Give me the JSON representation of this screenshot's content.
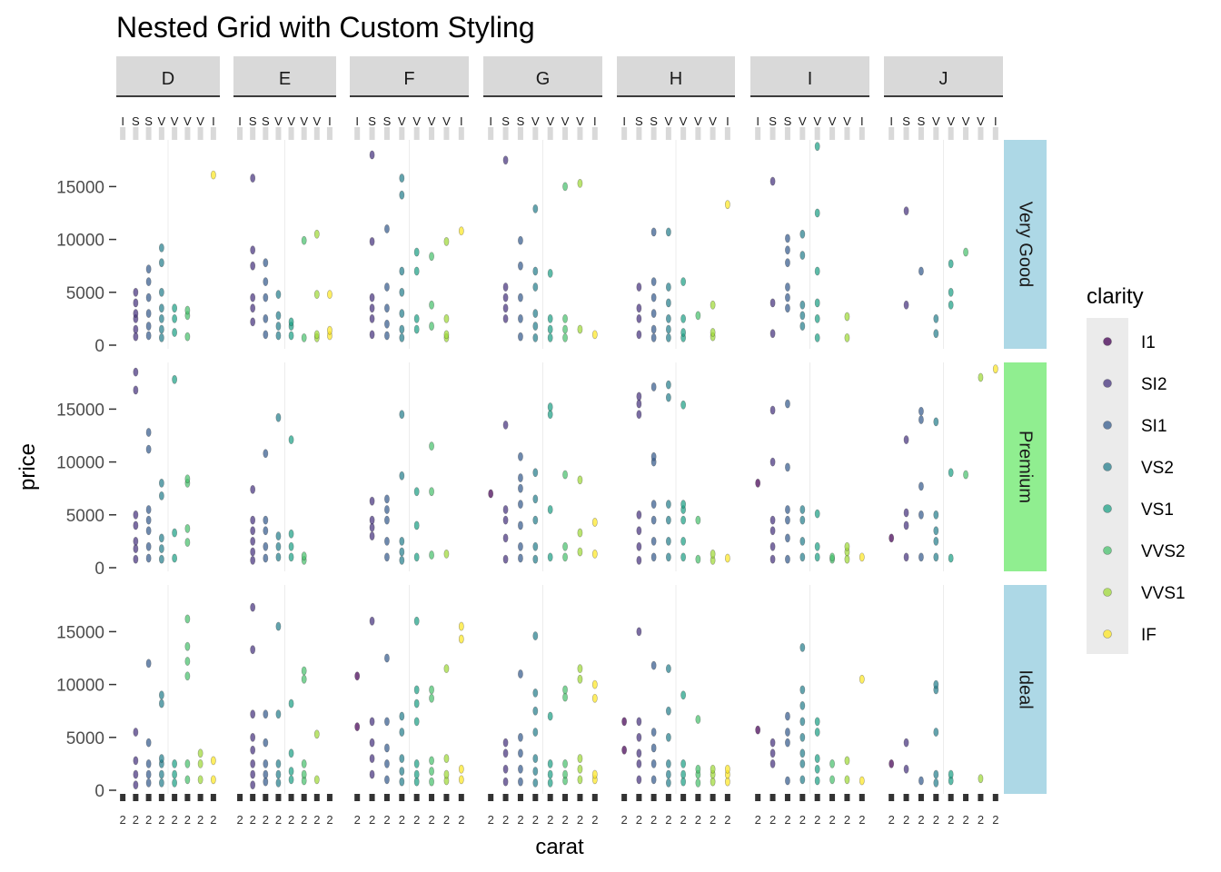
{
  "chart_data": {
    "type": "scatter",
    "title": "Nested Grid with Custom Styling",
    "xlabel": "carat",
    "ylabel": "price",
    "y_ticks": [
      0,
      5000,
      10000,
      15000
    ],
    "y_tick_labels": [
      "0",
      "5000",
      "10000",
      "15000"
    ],
    "ylim": [
      0,
      18900
    ],
    "color_facets": [
      "D",
      "E",
      "F",
      "G",
      "H",
      "I",
      "J"
    ],
    "cut_facets": [
      "Very Good",
      "Premium",
      "Ideal"
    ],
    "cut_strip_colors": [
      "#add8e6",
      "#90ee90",
      "#add8e6"
    ],
    "clarity_levels": [
      "I1",
      "SI2",
      "SI1",
      "VS2",
      "VS1",
      "VVS2",
      "VVS1",
      "IF"
    ],
    "clarity_colors": [
      "#440154",
      "#46337e",
      "#365c8d",
      "#277f8e",
      "#1fa187",
      "#4ac16d",
      "#a0da39",
      "#fde725"
    ],
    "legend": {
      "title": "clarity",
      "position": "right"
    },
    "grid": true,
    "panels": [
      {
        "cut": "Very Good",
        "color": "D",
        "points": {
          "I1": [],
          "SI2": [
            800,
            1500,
            2500,
            3000,
            4000,
            5000
          ],
          "SI1": [
            900,
            1800,
            3000,
            4500,
            6000,
            7200
          ],
          "VS2": [
            700,
            1500,
            2500,
            3500,
            5000,
            7800,
            9200
          ],
          "VS1": [
            1200,
            2500,
            3500
          ],
          "VVS2": [
            800,
            2800,
            3300
          ],
          "VVS1": [],
          "IF": [
            16100
          ]
        }
      },
      {
        "cut": "Very Good",
        "color": "E",
        "points": {
          "I1": [],
          "SI2": [
            2200,
            3500,
            4500,
            7500,
            9000,
            15800
          ],
          "SI1": [
            1000,
            2500,
            4500,
            6000,
            7800
          ],
          "VS2": [
            900,
            1800,
            2800,
            4800
          ],
          "VS1": [
            900,
            1800,
            2200
          ],
          "VVS2": [
            700,
            9900
          ],
          "VVS1": [
            700,
            1000,
            4800,
            10500
          ],
          "IF": [
            900,
            1400,
            4800
          ]
        }
      },
      {
        "cut": "Very Good",
        "color": "F",
        "points": {
          "I1": [],
          "SI2": [
            1000,
            2500,
            3500,
            4500,
            9800,
            18000
          ],
          "SI1": [
            900,
            2000,
            3500,
            5500,
            11000
          ],
          "VS2": [
            700,
            1500,
            3000,
            5000,
            7000,
            14200,
            15800
          ],
          "VS1": [
            1500,
            2500,
            7000,
            8800
          ],
          "VVS2": [
            1800,
            3800,
            8400
          ],
          "VVS1": [
            700,
            1000,
            2500,
            9800
          ],
          "IF": [
            10800
          ]
        }
      },
      {
        "cut": "Very Good",
        "color": "G",
        "points": {
          "I1": [],
          "SI2": [
            2500,
            3500,
            4500,
            5500,
            17500
          ],
          "SI1": [
            800,
            2500,
            4500,
            7500,
            9900
          ],
          "VS2": [
            700,
            1800,
            3000,
            5500,
            7000,
            12900
          ],
          "VS1": [
            700,
            1500,
            2500,
            6800
          ],
          "VVS2": [
            700,
            1500,
            2500,
            15000
          ],
          "VVS1": [
            1500,
            15300
          ],
          "IF": [
            1000
          ]
        }
      },
      {
        "cut": "Very Good",
        "color": "H",
        "points": {
          "I1": [],
          "SI2": [
            1000,
            2500,
            3500,
            5500
          ],
          "SI1": [
            700,
            1500,
            3000,
            4500,
            6000,
            10700
          ],
          "VS2": [
            700,
            1500,
            2500,
            4000,
            5500,
            10700
          ],
          "VS1": [
            700,
            1200,
            2500,
            6000
          ],
          "VVS2": [
            2800
          ],
          "VVS1": [
            800,
            1200,
            3800
          ],
          "IF": [
            13300
          ]
        }
      },
      {
        "cut": "Very Good",
        "color": "I",
        "points": {
          "I1": [],
          "SI2": [
            1100,
            4000,
            15500
          ],
          "SI1": [
            3500,
            4500,
            5500,
            7800,
            9000,
            10100
          ],
          "VS2": [
            1800,
            2800,
            3800,
            8500,
            10500
          ],
          "VS1": [
            700,
            2500,
            4000,
            7000,
            12500,
            18800
          ],
          "VVS2": [],
          "VVS1": [
            700,
            2700
          ],
          "IF": []
        }
      },
      {
        "cut": "Very Good",
        "color": "J",
        "points": {
          "I1": [],
          "SI2": [
            3800,
            12700
          ],
          "SI1": [
            7000
          ],
          "VS2": [
            1100,
            2500
          ],
          "VS1": [
            3800,
            5000,
            7700
          ],
          "VVS2": [
            8800
          ],
          "VVS1": [],
          "IF": []
        }
      },
      {
        "cut": "Premium",
        "color": "D",
        "points": {
          "I1": [],
          "SI2": [
            800,
            1800,
            2500,
            4000,
            5000,
            16800,
            18500
          ],
          "SI1": [
            900,
            2000,
            3500,
            4500,
            5500,
            11200,
            12800
          ],
          "VS2": [
            800,
            1800,
            2800,
            6800,
            8000
          ],
          "VS1": [
            900,
            3300,
            17800
          ],
          "VVS2": [
            2400,
            3700,
            8000,
            8400
          ],
          "VVS1": [],
          "IF": []
        }
      },
      {
        "cut": "Premium",
        "color": "E",
        "points": {
          "I1": [],
          "SI2": [
            700,
            1500,
            2500,
            3500,
            4500,
            7400
          ],
          "SI1": [
            900,
            2000,
            3500,
            4500,
            10800
          ],
          "VS2": [
            1000,
            2000,
            3000,
            14200
          ],
          "VS1": [
            1000,
            2000,
            3200,
            12100
          ],
          "VVS2": [
            700,
            1100
          ],
          "VVS1": [],
          "IF": []
        }
      },
      {
        "cut": "Premium",
        "color": "F",
        "points": {
          "I1": [],
          "SI2": [
            3000,
            3800,
            4500,
            6300
          ],
          "SI1": [
            1000,
            2500,
            4500,
            5500,
            6500
          ],
          "VS2": [
            700,
            1500,
            2500,
            8700,
            14500
          ],
          "VS1": [
            1000,
            4000,
            7200
          ],
          "VVS2": [
            1200,
            7200,
            11500
          ],
          "VVS1": [
            1300
          ],
          "IF": []
        }
      },
      {
        "cut": "Premium",
        "color": "G",
        "points": {
          "I1": [
            7000
          ],
          "SI2": [
            800,
            2800,
            4500,
            5500,
            13500
          ],
          "SI1": [
            900,
            2000,
            4000,
            6000,
            7500,
            8500,
            10500
          ],
          "VS2": [
            800,
            2000,
            4500,
            6500,
            9000
          ],
          "VS1": [
            1000,
            5500,
            14500,
            15200
          ],
          "VVS2": [
            1000,
            2000,
            8800
          ],
          "VVS1": [
            1500,
            3300,
            8300
          ],
          "IF": [
            1300,
            4300
          ]
        }
      },
      {
        "cut": "Premium",
        "color": "H",
        "points": {
          "I1": [],
          "SI2": [
            700,
            2000,
            3500,
            5000,
            14500,
            15500,
            16200
          ],
          "SI1": [
            1000,
            2500,
            4500,
            6000,
            10000,
            10500,
            17100
          ],
          "VS2": [
            1000,
            2500,
            4500,
            6000,
            16100,
            17300
          ],
          "VS1": [
            1000,
            2500,
            4500,
            5500,
            6000,
            15400
          ],
          "VVS2": [
            800,
            4500
          ],
          "VVS1": [
            700,
            1300
          ],
          "IF": [
            900
          ]
        }
      },
      {
        "cut": "Premium",
        "color": "I",
        "points": {
          "I1": [
            8000
          ],
          "SI2": [
            800,
            2000,
            3500,
            4500,
            10000,
            14900
          ],
          "SI1": [
            800,
            2800,
            4500,
            5500,
            9500,
            15500
          ],
          "VS2": [
            1000,
            2500,
            4500,
            5500
          ],
          "VS1": [
            1000,
            2000,
            5100
          ],
          "VVS2": [
            800,
            1000
          ],
          "VVS1": [
            800,
            1500,
            2000
          ],
          "IF": [
            1000
          ]
        }
      },
      {
        "cut": "Premium",
        "color": "J",
        "points": {
          "I1": [
            2800
          ],
          "SI2": [
            1000,
            4000,
            5200,
            12100
          ],
          "SI1": [
            1000,
            5000,
            7700,
            14000,
            14800
          ],
          "VS2": [
            1000,
            2500,
            3500,
            5000,
            13800
          ],
          "VS1": [
            900,
            9000
          ],
          "VVS2": [
            8800
          ],
          "VVS1": [
            18000
          ],
          "IF": [
            18800
          ]
        }
      },
      {
        "cut": "Ideal",
        "color": "D",
        "points": {
          "I1": [],
          "SI2": [
            500,
            1500,
            2800,
            5500
          ],
          "SI1": [
            700,
            1500,
            2500,
            4500,
            12000
          ],
          "VS2": [
            700,
            1500,
            2500,
            3000,
            8200,
            9000
          ],
          "VS1": [
            700,
            1500,
            2500
          ],
          "VVS2": [
            1000,
            2500,
            10800,
            12200,
            13600,
            16200
          ],
          "VVS1": [
            1000,
            2500,
            3500
          ],
          "IF": [
            1000,
            2800
          ]
        }
      },
      {
        "cut": "Ideal",
        "color": "E",
        "points": {
          "I1": [],
          "SI2": [
            500,
            1500,
            2500,
            3800,
            5000,
            7200,
            13300,
            17300
          ],
          "SI1": [
            800,
            1500,
            2500,
            4500,
            7200
          ],
          "VS2": [
            700,
            1500,
            2500,
            7200,
            15500
          ],
          "VS1": [
            1000,
            1800,
            3500,
            8200
          ],
          "VVS2": [
            900,
            1500,
            2500,
            10500,
            11300
          ],
          "VVS1": [
            1000,
            5300
          ],
          "IF": []
        }
      },
      {
        "cut": "Ideal",
        "color": "F",
        "points": {
          "I1": [
            6000,
            10800
          ],
          "SI2": [
            1500,
            3000,
            4500,
            6500,
            16000
          ],
          "SI1": [
            1000,
            2500,
            4000,
            6500,
            12500
          ],
          "VS2": [
            800,
            1800,
            3000,
            5500,
            7000
          ],
          "VS1": [
            800,
            1500,
            2500,
            6500,
            8200,
            9500,
            16000
          ],
          "VVS2": [
            800,
            1800,
            2800,
            8700,
            9500
          ],
          "VVS1": [
            900,
            1500,
            3000,
            11500
          ],
          "IF": [
            1000,
            2000,
            14300,
            15500
          ]
        }
      },
      {
        "cut": "Ideal",
        "color": "G",
        "points": {
          "I1": [],
          "SI2": [
            800,
            2000,
            3500,
            4500
          ],
          "SI1": [
            800,
            2000,
            3500,
            5000,
            11000
          ],
          "VS2": [
            700,
            1800,
            3000,
            5500,
            7500,
            9200,
            14600
          ],
          "VS1": [
            700,
            1500,
            2500,
            7000
          ],
          "VVS2": [
            900,
            1500,
            2500,
            8800,
            9500
          ],
          "VVS1": [
            1000,
            2000,
            3000,
            10500,
            11500
          ],
          "IF": [
            1000,
            1500,
            8700,
            10000
          ]
        }
      },
      {
        "cut": "Ideal",
        "color": "H",
        "points": {
          "I1": [
            3800,
            6500
          ],
          "SI2": [
            1000,
            2500,
            3500,
            5000,
            6500,
            15000
          ],
          "SI1": [
            1000,
            2500,
            4000,
            5500,
            11800
          ],
          "VS2": [
            700,
            1500,
            2500,
            5000,
            7500,
            11500
          ],
          "VS1": [
            800,
            1500,
            2500,
            9000
          ],
          "VVS2": [
            700,
            1500,
            2000,
            6700
          ],
          "VVS1": [
            800,
            1500,
            2000
          ],
          "IF": [
            800,
            1500,
            2000
          ]
        }
      },
      {
        "cut": "Ideal",
        "color": "I",
        "points": {
          "I1": [
            5700
          ],
          "SI2": [
            2500,
            3500,
            4500
          ],
          "SI1": [
            900,
            4500,
            5500,
            7000
          ],
          "VS2": [
            1000,
            2500,
            3500,
            5000,
            6500,
            8000,
            9500,
            13500
          ],
          "VS1": [
            900,
            2000,
            3000,
            5500,
            6500
          ],
          "VVS2": [
            1000,
            2500
          ],
          "VVS1": [
            1000,
            2800
          ],
          "IF": [
            900,
            10500
          ]
        }
      },
      {
        "cut": "Ideal",
        "color": "J",
        "points": {
          "I1": [
            2500
          ],
          "SI2": [
            2000,
            4500
          ],
          "SI1": [
            900
          ],
          "VS2": [
            700,
            1500,
            5500,
            9500,
            10000
          ],
          "VS1": [
            900,
            1500
          ],
          "VVS2": [],
          "VVS1": [
            1100
          ],
          "IF": []
        }
      }
    ]
  }
}
